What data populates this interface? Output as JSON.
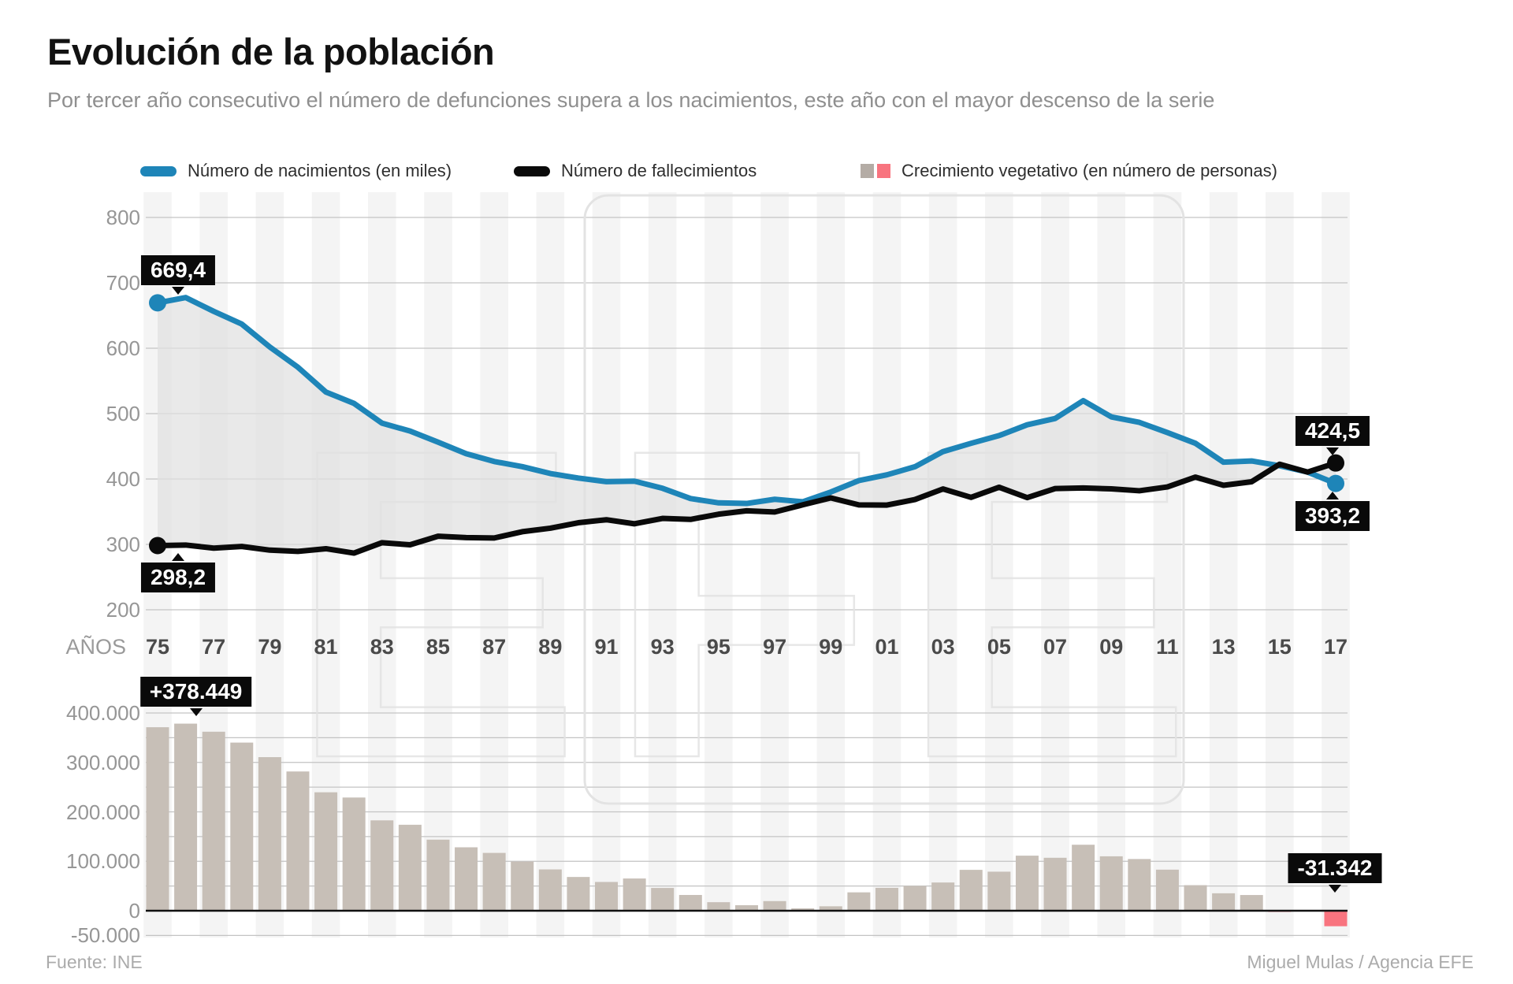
{
  "header": {
    "title": "Evolución de la población",
    "subtitle": "Por tercer año consecutivo el número de defunciones supera a los nacimientos, este año con el mayor descenso de la serie"
  },
  "legend": {
    "items": [
      {
        "label": "Número de nacimientos (en miles)",
        "swatch": "blue-line"
      },
      {
        "label": "Número de fallecimientos",
        "swatch": "black-line"
      },
      {
        "label": "Crecimiento vegetativo (en número de personas)",
        "swatch": "gray-red-squares"
      }
    ]
  },
  "colors": {
    "births_blue": "#1e85b8",
    "deaths_black": "#0a0a0a",
    "growth_bar": "#c7bfb7",
    "growth_bar_negative": "#f8747f",
    "legend_gray_swatch": "#b4aca5",
    "gridline": "#c3c3c3",
    "stripe": "#f4f4f4",
    "watermark": "#e3e3e3",
    "area_fill": "#e1e1e1",
    "annotation_bg": "#0a0a0a",
    "annotation_text": "#ffffff"
  },
  "watermark_text": "EFE",
  "chart_data": [
    {
      "id": "nacimientos-fallecimientos",
      "type": "line",
      "x_label": "AÑOS",
      "x": [
        1975,
        1976,
        1977,
        1978,
        1979,
        1980,
        1981,
        1982,
        1983,
        1984,
        1985,
        1986,
        1987,
        1988,
        1989,
        1990,
        1991,
        1992,
        1993,
        1994,
        1995,
        1996,
        1997,
        1998,
        1999,
        2000,
        2001,
        2002,
        2003,
        2004,
        2005,
        2006,
        2007,
        2008,
        2009,
        2010,
        2011,
        2012,
        2013,
        2014,
        2015,
        2016,
        2017
      ],
      "x_tick_labels": [
        "75",
        "77",
        "79",
        "81",
        "83",
        "85",
        "87",
        "89",
        "91",
        "93",
        "95",
        "97",
        "99",
        "01",
        "03",
        "05",
        "07",
        "09",
        "11",
        "13",
        "15",
        "17"
      ],
      "ylim": [
        200,
        800
      ],
      "yticks": [
        800,
        700,
        600,
        500,
        400,
        300,
        200
      ],
      "grid": true,
      "series": [
        {
          "name": "Número de nacimientos (en miles)",
          "values": [
            669.4,
            677.5,
            656.4,
            636.9,
            601.9,
            571.0,
            533.0,
            515.7,
            485.4,
            473.3,
            456.3,
            438.7,
            426.8,
            418.9,
            408.4,
            401.4,
            395.9,
            396.7,
            385.8,
            370.1,
            363.5,
            362.6,
            369.0,
            365.2,
            380.1,
            397.6,
            406.4,
            418.8,
            441.9,
            454.6,
            466.4,
            482.9,
            492.5,
            519.8,
            495.0,
            486.6,
            471.0,
            454.6,
            425.7,
            427.6,
            420.3,
            410.6,
            393.2
          ]
        },
        {
          "name": "Número de fallecimientos",
          "values": [
            298.2,
            299.0,
            294.3,
            296.8,
            291.2,
            289.3,
            293.4,
            286.7,
            302.6,
            299.4,
            312.5,
            310.4,
            309.8,
            319.4,
            324.8,
            333.1,
            337.7,
            331.5,
            339.7,
            338.2,
            346.2,
            351.4,
            349.5,
            360.5,
            371.1,
            360.4,
            360.1,
            368.6,
            384.8,
            371.9,
            387.4,
            371.5,
            385.4,
            386.3,
            384.9,
            382.0,
            387.9,
            402.9,
            390.4,
            395.8,
            422.6,
            410.6,
            424.5
          ]
        }
      ],
      "annotations": [
        {
          "text": "669,4",
          "year": 1975,
          "series": 0,
          "value": 669.4,
          "placement": "above"
        },
        {
          "text": "298,2",
          "year": 1975,
          "series": 1,
          "value": 298.2,
          "placement": "below"
        },
        {
          "text": "424,5",
          "year": 2017,
          "series": 1,
          "value": 424.5,
          "placement": "above"
        },
        {
          "text": "393,2",
          "year": 2017,
          "series": 0,
          "value": 393.2,
          "placement": "below"
        }
      ]
    },
    {
      "id": "crecimiento-vegetativo",
      "type": "bar",
      "title": "Crecimiento vegetativo (en número de personas)",
      "x": [
        1975,
        1976,
        1977,
        1978,
        1979,
        1980,
        1981,
        1982,
        1983,
        1984,
        1985,
        1986,
        1987,
        1988,
        1989,
        1990,
        1991,
        1992,
        1993,
        1994,
        1995,
        1996,
        1997,
        1998,
        1999,
        2000,
        2001,
        2002,
        2003,
        2004,
        2005,
        2006,
        2007,
        2008,
        2009,
        2010,
        2011,
        2012,
        2013,
        2014,
        2015,
        2016,
        2017
      ],
      "values": [
        371200,
        378449,
        362100,
        340100,
        310700,
        281700,
        239600,
        229000,
        182800,
        173900,
        143800,
        128300,
        117000,
        99500,
        83600,
        68300,
        58200,
        65200,
        46100,
        31900,
        17300,
        11200,
        19500,
        4700,
        9000,
        37200,
        46300,
        50200,
        57100,
        82700,
        79000,
        111400,
        107100,
        133500,
        110100,
        104600,
        83100,
        51700,
        35300,
        31800,
        -2300,
        -28,
        -31342
      ],
      "ylim": [
        -50000,
        400000
      ],
      "ytick_values": [
        400000,
        300000,
        200000,
        100000,
        0,
        -50000
      ],
      "ytick_labels": [
        "400.000",
        "300.000",
        "200.000",
        "100.000",
        "0",
        "-50.000"
      ],
      "grid_step": 50000,
      "annotations": [
        {
          "text": "+378.449",
          "year": 1976,
          "value": 378449,
          "placement": "above"
        },
        {
          "text": "-31.342",
          "year": 2017,
          "value": -31342,
          "placement": "above"
        }
      ]
    }
  ],
  "footer": {
    "source": "Fuente: INE",
    "credit": "Miguel Mulas / Agencia EFE"
  }
}
